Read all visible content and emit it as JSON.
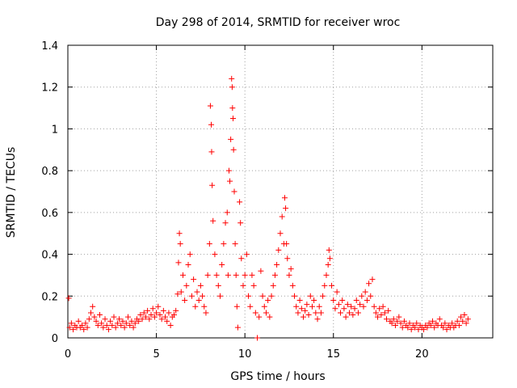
{
  "chart_data": {
    "type": "scatter",
    "title": "Day 298 of 2014, SRMTID for receiver wroc",
    "xlabel": "GPS time / hours",
    "ylabel": "SRMTID / TECUs",
    "xlim": [
      0,
      24
    ],
    "ylim": [
      0,
      1.4
    ],
    "xticks": [
      0,
      5,
      10,
      15,
      20
    ],
    "xtick_labels": [
      "0",
      "5",
      "10",
      "15",
      "20"
    ],
    "yticks": [
      0,
      0.2,
      0.4,
      0.6,
      0.8,
      1,
      1.2,
      1.4
    ],
    "ytick_labels": [
      "0",
      "0.2",
      "0.4",
      "0.6",
      "0.8",
      "1",
      "1.2",
      "1.4"
    ],
    "grid": true,
    "marker": "+",
    "color": "#ff0000",
    "series": [
      {
        "name": "SRMTID",
        "points": [
          [
            0.05,
            0.19
          ],
          [
            0.1,
            0.05
          ],
          [
            0.2,
            0.07
          ],
          [
            0.3,
            0.04
          ],
          [
            0.4,
            0.06
          ],
          [
            0.5,
            0.05
          ],
          [
            0.6,
            0.08
          ],
          [
            0.7,
            0.05
          ],
          [
            0.8,
            0.06
          ],
          [
            0.9,
            0.04
          ],
          [
            1.0,
            0.07
          ],
          [
            1.1,
            0.05
          ],
          [
            1.2,
            0.09
          ],
          [
            1.3,
            0.12
          ],
          [
            1.4,
            0.15
          ],
          [
            1.5,
            0.1
          ],
          [
            1.6,
            0.08
          ],
          [
            1.7,
            0.06
          ],
          [
            1.8,
            0.11
          ],
          [
            1.9,
            0.07
          ],
          [
            2.0,
            0.05
          ],
          [
            2.1,
            0.09
          ],
          [
            2.2,
            0.06
          ],
          [
            2.3,
            0.04
          ],
          [
            2.4,
            0.08
          ],
          [
            2.5,
            0.06
          ],
          [
            2.6,
            0.1
          ],
          [
            2.7,
            0.05
          ],
          [
            2.8,
            0.07
          ],
          [
            2.9,
            0.09
          ],
          [
            3.0,
            0.06
          ],
          [
            3.1,
            0.08
          ],
          [
            3.2,
            0.05
          ],
          [
            3.3,
            0.07
          ],
          [
            3.4,
            0.1
          ],
          [
            3.5,
            0.06
          ],
          [
            3.6,
            0.08
          ],
          [
            3.7,
            0.05
          ],
          [
            3.8,
            0.07
          ],
          [
            3.9,
            0.09
          ],
          [
            4.0,
            0.08
          ],
          [
            4.1,
            0.11
          ],
          [
            4.2,
            0.09
          ],
          [
            4.3,
            0.12
          ],
          [
            4.4,
            0.1
          ],
          [
            4.5,
            0.13
          ],
          [
            4.6,
            0.09
          ],
          [
            4.7,
            0.11
          ],
          [
            4.8,
            0.14
          ],
          [
            4.9,
            0.1
          ],
          [
            5.0,
            0.12
          ],
          [
            5.1,
            0.15
          ],
          [
            5.2,
            0.11
          ],
          [
            5.3,
            0.09
          ],
          [
            5.4,
            0.13
          ],
          [
            5.5,
            0.1
          ],
          [
            5.6,
            0.08
          ],
          [
            5.7,
            0.12
          ],
          [
            5.8,
            0.06
          ],
          [
            5.9,
            0.1
          ],
          [
            6.0,
            0.11
          ],
          [
            6.1,
            0.13
          ],
          [
            6.2,
            0.21
          ],
          [
            6.25,
            0.36
          ],
          [
            6.3,
            0.5
          ],
          [
            6.35,
            0.45
          ],
          [
            6.4,
            0.22
          ],
          [
            6.5,
            0.3
          ],
          [
            6.6,
            0.18
          ],
          [
            6.7,
            0.25
          ],
          [
            6.8,
            0.35
          ],
          [
            6.9,
            0.4
          ],
          [
            7.0,
            0.2
          ],
          [
            7.1,
            0.28
          ],
          [
            7.2,
            0.15
          ],
          [
            7.3,
            0.22
          ],
          [
            7.4,
            0.18
          ],
          [
            7.5,
            0.25
          ],
          [
            7.6,
            0.2
          ],
          [
            7.7,
            0.15
          ],
          [
            7.8,
            0.12
          ],
          [
            7.9,
            0.3
          ],
          [
            8.0,
            0.45
          ],
          [
            8.05,
            1.11
          ],
          [
            8.1,
            1.02
          ],
          [
            8.12,
            0.89
          ],
          [
            8.15,
            0.73
          ],
          [
            8.2,
            0.56
          ],
          [
            8.3,
            0.4
          ],
          [
            8.4,
            0.3
          ],
          [
            8.5,
            0.25
          ],
          [
            8.6,
            0.2
          ],
          [
            8.7,
            0.35
          ],
          [
            8.8,
            0.45
          ],
          [
            8.9,
            0.55
          ],
          [
            9.0,
            0.6
          ],
          [
            9.05,
            0.3
          ],
          [
            9.1,
            0.8
          ],
          [
            9.15,
            0.75
          ],
          [
            9.2,
            0.95
          ],
          [
            9.25,
            1.24
          ],
          [
            9.28,
            1.2
          ],
          [
            9.3,
            1.1
          ],
          [
            9.33,
            1.05
          ],
          [
            9.36,
            0.9
          ],
          [
            9.4,
            0.7
          ],
          [
            9.45,
            0.45
          ],
          [
            9.5,
            0.3
          ],
          [
            9.55,
            0.15
          ],
          [
            9.6,
            0.05
          ],
          [
            9.7,
            0.65
          ],
          [
            9.75,
            0.55
          ],
          [
            9.8,
            0.38
          ],
          [
            9.9,
            0.25
          ],
          [
            10.0,
            0.3
          ],
          [
            10.1,
            0.4
          ],
          [
            10.2,
            0.2
          ],
          [
            10.3,
            0.15
          ],
          [
            10.4,
            0.3
          ],
          [
            10.5,
            0.25
          ],
          [
            10.6,
            0.12
          ],
          [
            10.7,
            0.0
          ],
          [
            10.8,
            0.1
          ],
          [
            10.9,
            0.32
          ],
          [
            11.0,
            0.2
          ],
          [
            11.1,
            0.15
          ],
          [
            11.2,
            0.12
          ],
          [
            11.3,
            0.18
          ],
          [
            11.4,
            0.1
          ],
          [
            11.5,
            0.2
          ],
          [
            11.6,
            0.25
          ],
          [
            11.7,
            0.3
          ],
          [
            11.8,
            0.35
          ],
          [
            11.9,
            0.42
          ],
          [
            12.0,
            0.5
          ],
          [
            12.1,
            0.58
          ],
          [
            12.2,
            0.45
          ],
          [
            12.25,
            0.67
          ],
          [
            12.3,
            0.62
          ],
          [
            12.35,
            0.45
          ],
          [
            12.4,
            0.38
          ],
          [
            12.5,
            0.3
          ],
          [
            12.6,
            0.33
          ],
          [
            12.7,
            0.25
          ],
          [
            12.8,
            0.2
          ],
          [
            12.9,
            0.15
          ],
          [
            13.0,
            0.12
          ],
          [
            13.1,
            0.18
          ],
          [
            13.2,
            0.14
          ],
          [
            13.3,
            0.1
          ],
          [
            13.4,
            0.13
          ],
          [
            13.5,
            0.16
          ],
          [
            13.6,
            0.11
          ],
          [
            13.7,
            0.2
          ],
          [
            13.8,
            0.15
          ],
          [
            13.9,
            0.18
          ],
          [
            14.0,
            0.12
          ],
          [
            14.1,
            0.09
          ],
          [
            14.2,
            0.15
          ],
          [
            14.3,
            0.12
          ],
          [
            14.4,
            0.2
          ],
          [
            14.5,
            0.25
          ],
          [
            14.6,
            0.3
          ],
          [
            14.7,
            0.35
          ],
          [
            14.75,
            0.42
          ],
          [
            14.8,
            0.38
          ],
          [
            14.9,
            0.25
          ],
          [
            15.0,
            0.18
          ],
          [
            15.1,
            0.14
          ],
          [
            15.2,
            0.22
          ],
          [
            15.3,
            0.16
          ],
          [
            15.4,
            0.12
          ],
          [
            15.5,
            0.18
          ],
          [
            15.6,
            0.14
          ],
          [
            15.7,
            0.1
          ],
          [
            15.8,
            0.16
          ],
          [
            15.9,
            0.12
          ],
          [
            16.0,
            0.15
          ],
          [
            16.1,
            0.11
          ],
          [
            16.2,
            0.14
          ],
          [
            16.3,
            0.18
          ],
          [
            16.4,
            0.12
          ],
          [
            16.5,
            0.16
          ],
          [
            16.6,
            0.2
          ],
          [
            16.7,
            0.15
          ],
          [
            16.8,
            0.22
          ],
          [
            16.9,
            0.18
          ],
          [
            17.0,
            0.26
          ],
          [
            17.1,
            0.2
          ],
          [
            17.2,
            0.28
          ],
          [
            17.3,
            0.15
          ],
          [
            17.4,
            0.12
          ],
          [
            17.5,
            0.1
          ],
          [
            17.6,
            0.14
          ],
          [
            17.7,
            0.11
          ],
          [
            17.8,
            0.15
          ],
          [
            17.9,
            0.12
          ],
          [
            18.0,
            0.09
          ],
          [
            18.1,
            0.13
          ],
          [
            18.2,
            0.08
          ],
          [
            18.3,
            0.07
          ],
          [
            18.4,
            0.09
          ],
          [
            18.5,
            0.06
          ],
          [
            18.6,
            0.08
          ],
          [
            18.7,
            0.1
          ],
          [
            18.8,
            0.07
          ],
          [
            18.9,
            0.05
          ],
          [
            19.0,
            0.08
          ],
          [
            19.1,
            0.06
          ],
          [
            19.2,
            0.05
          ],
          [
            19.3,
            0.07
          ],
          [
            19.4,
            0.04
          ],
          [
            19.5,
            0.06
          ],
          [
            19.6,
            0.05
          ],
          [
            19.7,
            0.07
          ],
          [
            19.8,
            0.04
          ],
          [
            19.9,
            0.06
          ],
          [
            20.0,
            0.05
          ],
          [
            20.1,
            0.04
          ],
          [
            20.2,
            0.06
          ],
          [
            20.3,
            0.05
          ],
          [
            20.4,
            0.07
          ],
          [
            20.5,
            0.06
          ],
          [
            20.6,
            0.08
          ],
          [
            20.7,
            0.05
          ],
          [
            20.8,
            0.07
          ],
          [
            20.9,
            0.06
          ],
          [
            21.0,
            0.09
          ],
          [
            21.1,
            0.06
          ],
          [
            21.2,
            0.05
          ],
          [
            21.3,
            0.07
          ],
          [
            21.4,
            0.04
          ],
          [
            21.5,
            0.06
          ],
          [
            21.6,
            0.05
          ],
          [
            21.7,
            0.07
          ],
          [
            21.8,
            0.05
          ],
          [
            21.9,
            0.06
          ],
          [
            22.0,
            0.08
          ],
          [
            22.1,
            0.06
          ],
          [
            22.2,
            0.1
          ],
          [
            22.3,
            0.08
          ],
          [
            22.4,
            0.11
          ],
          [
            22.5,
            0.07
          ],
          [
            22.6,
            0.09
          ]
        ]
      }
    ]
  }
}
